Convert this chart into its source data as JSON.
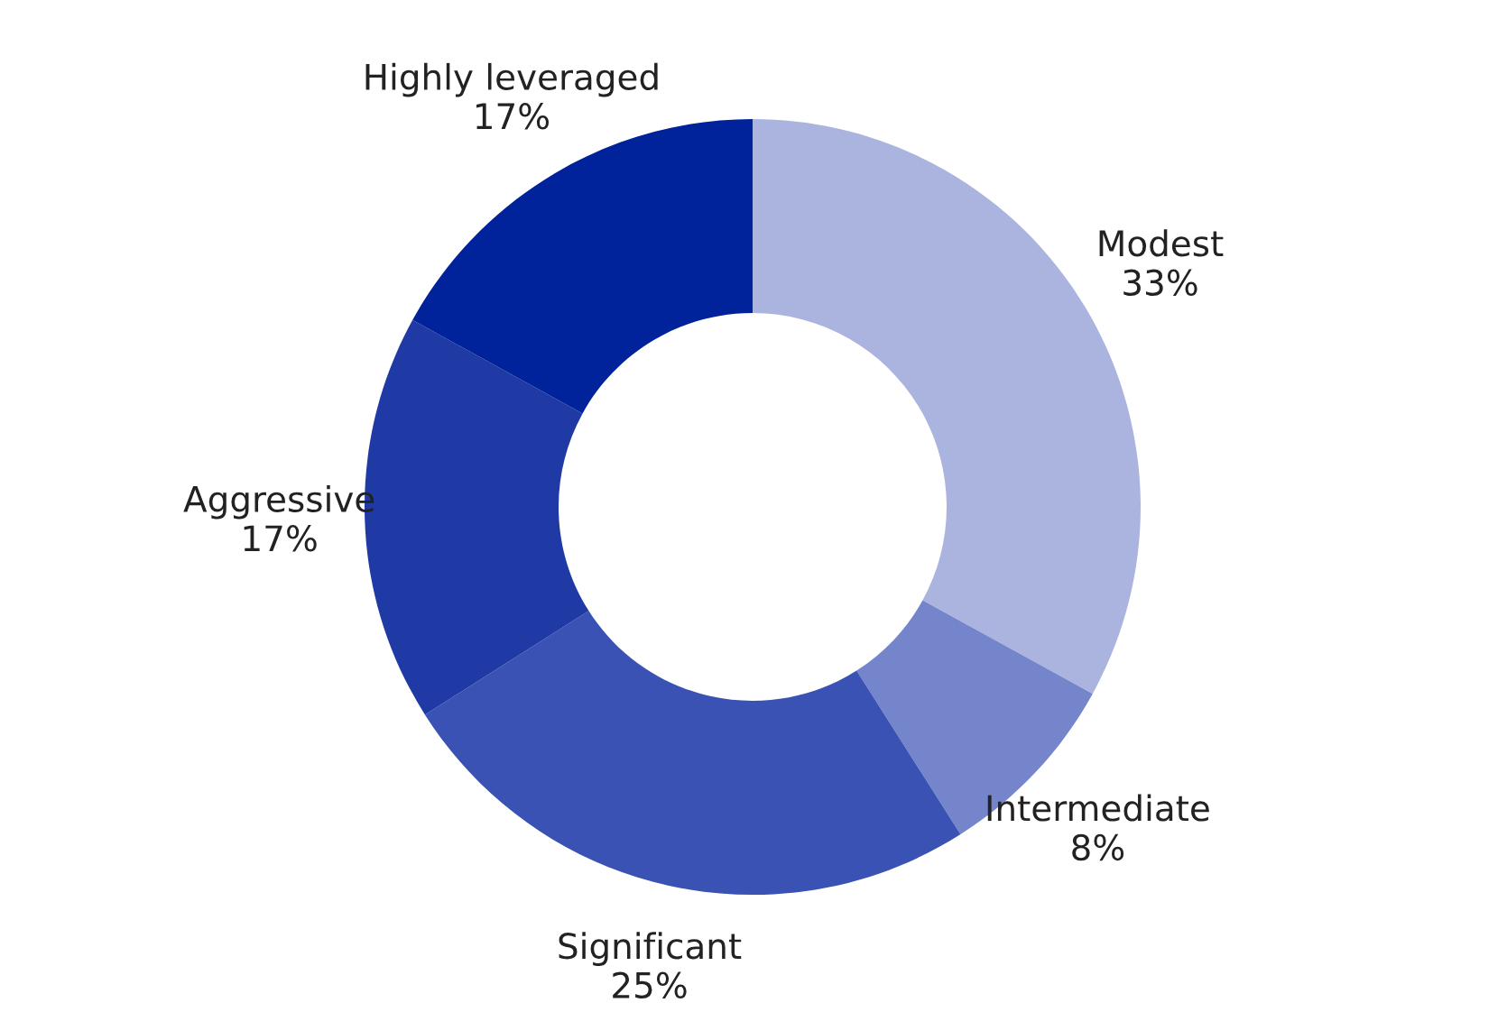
{
  "chart_data": {
    "type": "donut",
    "categories": [
      "Modest",
      "Intermediate",
      "Significant",
      "Aggressive",
      "Highly leveraged"
    ],
    "values": [
      33,
      8,
      25,
      17,
      17
    ],
    "colors": [
      "#aab4df",
      "#7585cb",
      "#3a52b3",
      "#1f3aa5",
      "#00239c"
    ],
    "value_labels": [
      "33%",
      "8%",
      "25%",
      "17%",
      "17%"
    ],
    "legend": false
  }
}
